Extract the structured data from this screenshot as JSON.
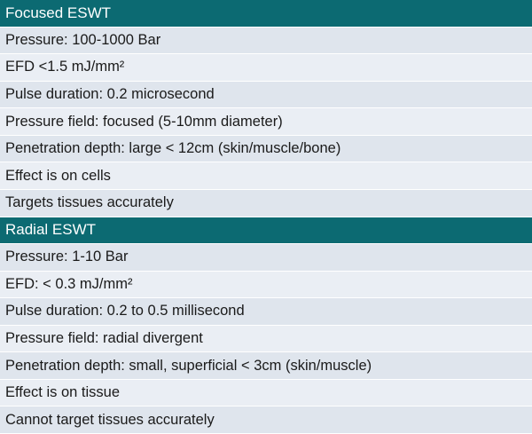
{
  "sections": [
    {
      "title": "Focused ESWT",
      "rows": [
        "Pressure: 100-1000 Bar",
        "EFD <1.5 mJ/mm²",
        "Pulse duration: 0.2 microsecond",
        "Pressure field: focused (5-10mm diameter)",
        "Penetration depth: large < 12cm (skin/muscle/bone)",
        "Effect is on cells",
        "Targets tissues accurately"
      ]
    },
    {
      "title": "Radial ESWT",
      "rows": [
        "Pressure: 1-10 Bar",
        "EFD: < 0.3 mJ/mm²",
        "Pulse duration: 0.2 to 0.5 millisecond",
        "Pressure field: radial divergent",
        "Penetration depth: small, superficial < 3cm (skin/muscle)",
        "Effect is on tissue",
        "Cannot target tissues accurately"
      ]
    }
  ]
}
